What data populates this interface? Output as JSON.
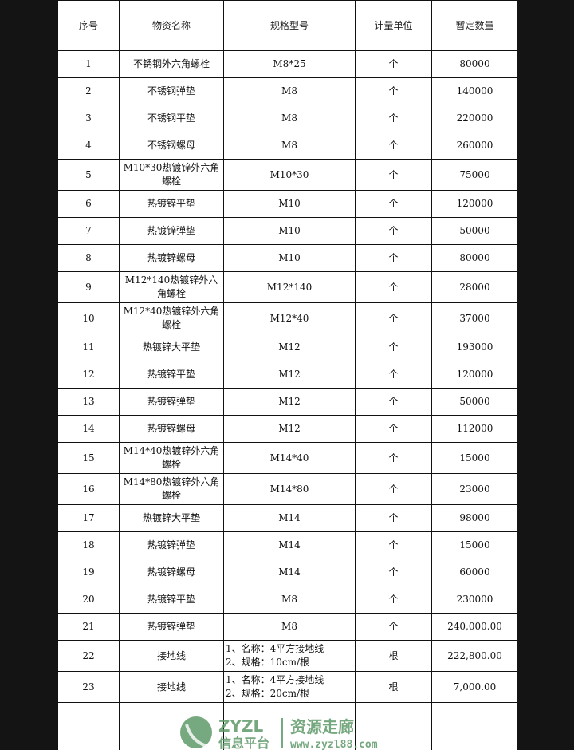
{
  "table": {
    "headers": [
      "序号",
      "物资名称",
      "规格型号",
      "计量单位",
      "暂定数量"
    ],
    "rows": [
      {
        "no": "1",
        "name": "不锈钢外六角螺栓",
        "spec": "M8*25",
        "unit": "个",
        "qty": "80000"
      },
      {
        "no": "2",
        "name": "不锈钢弹垫",
        "spec": "M8",
        "unit": "个",
        "qty": "140000"
      },
      {
        "no": "3",
        "name": "不锈钢平垫",
        "spec": "M8",
        "unit": "个",
        "qty": "220000"
      },
      {
        "no": "4",
        "name": "不锈钢螺母",
        "spec": "M8",
        "unit": "个",
        "qty": "260000"
      },
      {
        "no": "5",
        "name": "M10*30热镀锌外六角螺栓",
        "spec": "M10*30",
        "unit": "个",
        "qty": "75000"
      },
      {
        "no": "6",
        "name": "热镀锌平垫",
        "spec": "M10",
        "unit": "个",
        "qty": "120000"
      },
      {
        "no": "7",
        "name": "热镀锌弹垫",
        "spec": "M10",
        "unit": "个",
        "qty": "50000"
      },
      {
        "no": "8",
        "name": "热镀锌螺母",
        "spec": "M10",
        "unit": "个",
        "qty": "80000"
      },
      {
        "no": "9",
        "name": "M12*140热镀锌外六角螺栓",
        "spec": "M12*140",
        "unit": "个",
        "qty": "28000"
      },
      {
        "no": "10",
        "name": "M12*40热镀锌外六角螺栓",
        "spec": "M12*40",
        "unit": "个",
        "qty": "37000"
      },
      {
        "no": "11",
        "name": "热镀锌大平垫",
        "spec": "M12",
        "unit": "个",
        "qty": "193000"
      },
      {
        "no": "12",
        "name": "热镀锌平垫",
        "spec": "M12",
        "unit": "个",
        "qty": "120000"
      },
      {
        "no": "13",
        "name": "热镀锌弹垫",
        "spec": "M12",
        "unit": "个",
        "qty": "50000"
      },
      {
        "no": "14",
        "name": "热镀锌螺母",
        "spec": "M12",
        "unit": "个",
        "qty": "112000"
      },
      {
        "no": "15",
        "name": "M14*40热镀锌外六角螺栓",
        "spec": "M14*40",
        "unit": "个",
        "qty": "15000"
      },
      {
        "no": "16",
        "name": "M14*80热镀锌外六角螺栓",
        "spec": "M14*80",
        "unit": "个",
        "qty": "23000"
      },
      {
        "no": "17",
        "name": "热镀锌大平垫",
        "spec": "M14",
        "unit": "个",
        "qty": "98000"
      },
      {
        "no": "18",
        "name": "热镀锌弹垫",
        "spec": "M14",
        "unit": "个",
        "qty": "15000"
      },
      {
        "no": "19",
        "name": "热镀锌螺母",
        "spec": "M14",
        "unit": "个",
        "qty": "60000"
      },
      {
        "no": "20",
        "name": "热镀锌平垫",
        "spec": "M8",
        "unit": "个",
        "qty": "230000"
      },
      {
        "no": "21",
        "name": "热镀锌弹垫",
        "spec": "M8",
        "unit": "个",
        "qty": "240,000.00"
      }
    ],
    "special_rows": [
      {
        "no": "22",
        "name": "接地线",
        "spec1": "1、名称：4平方接地线",
        "spec2": "2、规格：10cm/根",
        "unit": "根",
        "qty": "222,800.00"
      },
      {
        "no": "23",
        "name": "接地线",
        "spec1": "1、名称：4平方接地线",
        "spec2": "2、规格：20cm/根",
        "unit": "根",
        "qty": "7,000.00"
      }
    ]
  },
  "watermark": {
    "latin": "ZYZL",
    "cn_big": "资源走廊",
    "cn_small": "信息平台",
    "url": "www.zyzl88.com",
    "color": "#5f9a6a"
  }
}
